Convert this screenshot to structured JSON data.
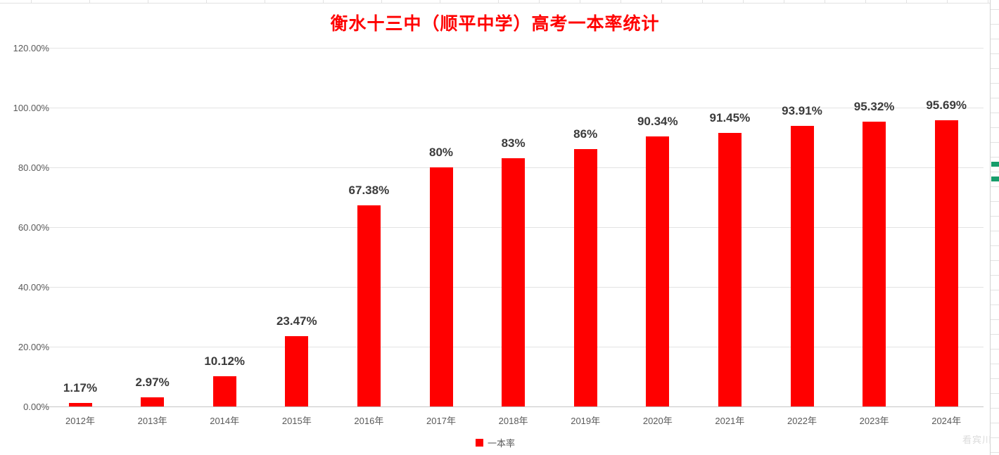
{
  "title": {
    "text": "衡水十三中（顺平中学）高考一本率统计",
    "color": "#ff0000"
  },
  "legend": {
    "label": "一本率",
    "swatch_color": "#ff0000",
    "position": "bottom"
  },
  "watermark": "看宾川",
  "chart_data": {
    "type": "bar",
    "title": "衡水十三中（顺平中学）高考一本率统计",
    "categories": [
      "2012年",
      "2013年",
      "2014年",
      "2015年",
      "2016年",
      "2017年",
      "2018年",
      "2019年",
      "2020年",
      "2021年",
      "2022年",
      "2023年",
      "2024年"
    ],
    "series": [
      {
        "name": "一本率",
        "values": [
          1.17,
          2.97,
          10.12,
          23.47,
          67.38,
          80,
          83,
          86,
          90.34,
          91.45,
          93.91,
          95.32,
          95.69
        ]
      }
    ],
    "data_labels": [
      "1.17%",
      "2.97%",
      "10.12%",
      "23.47%",
      "67.38%",
      "80%",
      "83%",
      "86%",
      "90.34%",
      "91.45%",
      "93.91%",
      "95.32%",
      "95.69%"
    ],
    "xlabel": "",
    "ylabel": "",
    "y_tick_labels": [
      "0.00%",
      "20.00%",
      "40.00%",
      "60.00%",
      "80.00%",
      "100.00%",
      "120.00%"
    ],
    "ylim": [
      0,
      120
    ],
    "y_tick_step": 20,
    "grid": true,
    "bar_color": "#ff0000",
    "data_label_color": "#3b3b3b",
    "axis_text_color": "#595959",
    "legend_position": "bottom"
  },
  "spreadsheet_decor": {
    "green_cell_color": "#179d6b",
    "gridline_color": "#e2e2e2"
  }
}
